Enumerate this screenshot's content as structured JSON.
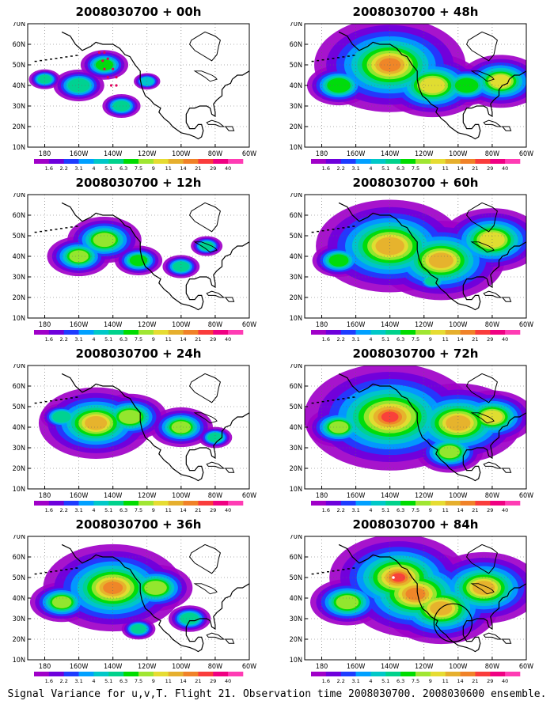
{
  "panels": [
    {
      "title": "2008030700 + 00h",
      "blobs": [
        [
          145,
          50,
          0.45,
          10
        ],
        [
          160,
          40,
          0.4,
          12
        ],
        [
          135,
          30,
          0.3,
          12
        ],
        [
          180,
          43,
          0.3,
          10
        ],
        [
          120,
          42,
          0.25,
          10
        ]
      ],
      "markers": "track"
    },
    {
      "title": "2008030700 + 48h",
      "blobs": [
        [
          140,
          50,
          1.1,
          13
        ],
        [
          115,
          40,
          0.8,
          12
        ],
        [
          75,
          42,
          0.8,
          10
        ],
        [
          170,
          40,
          0.5,
          12
        ],
        [
          95,
          40,
          0.5,
          12
        ]
      ]
    },
    {
      "title": "2008030700 + 12h",
      "blobs": [
        [
          145,
          48,
          0.7,
          10
        ],
        [
          160,
          40,
          0.6,
          10
        ],
        [
          125,
          38,
          0.45,
          10
        ],
        [
          100,
          35,
          0.35,
          10
        ],
        [
          85,
          45,
          0.3,
          10
        ]
      ]
    },
    {
      "title": "2008030700 + 60h",
      "blobs": [
        [
          140,
          45,
          1.0,
          14
        ],
        [
          110,
          38,
          1.0,
          12
        ],
        [
          80,
          48,
          0.8,
          12
        ],
        [
          170,
          38,
          0.5,
          10
        ],
        [
          115,
          28,
          0.4,
          8
        ]
      ]
    },
    {
      "title": "2008030700 + 24h",
      "blobs": [
        [
          150,
          42,
          0.9,
          12
        ],
        [
          130,
          45,
          0.7,
          10
        ],
        [
          100,
          40,
          0.6,
          10
        ],
        [
          80,
          35,
          0.4,
          8
        ],
        [
          170,
          45,
          0.4,
          10
        ]
      ]
    },
    {
      "title": "2008030700 + 72h",
      "blobs": [
        [
          140,
          45,
          1.35,
          12
        ],
        [
          100,
          42,
          1.0,
          12
        ],
        [
          80,
          45,
          0.8,
          10
        ],
        [
          170,
          40,
          0.6,
          10
        ],
        [
          105,
          28,
          0.7,
          9
        ]
      ]
    },
    {
      "title": "2008030700 + 36h",
      "blobs": [
        [
          140,
          45,
          1.1,
          12
        ],
        [
          115,
          45,
          0.7,
          10
        ],
        [
          170,
          38,
          0.6,
          10
        ],
        [
          95,
          30,
          0.4,
          10
        ],
        [
          125,
          25,
          0.4,
          8
        ]
      ]
    },
    {
      "title": "2008030700 + 84h",
      "blobs": [
        [
          135,
          50,
          1.45,
          9
        ],
        [
          125,
          42,
          1.1,
          12
        ],
        [
          110,
          35,
          0.9,
          12
        ],
        [
          85,
          45,
          0.9,
          12
        ],
        [
          165,
          38,
          0.7,
          10
        ]
      ],
      "markers": "circle"
    }
  ],
  "axes": {
    "lat_labels": [
      "70N",
      "60N",
      "50N",
      "40N",
      "30N",
      "20N",
      "10N"
    ],
    "lon_labels": [
      "180",
      "160W",
      "140W",
      "120W",
      "100W",
      "80W",
      "60W"
    ]
  },
  "colorbar": {
    "labels": [
      "1.6",
      "2.2",
      "3.1",
      "4",
      "5.1",
      "6.3",
      "7.5",
      "9",
      "11",
      "14",
      "21",
      "29",
      "40"
    ],
    "colors": [
      "#a000c8",
      "#6e00dc",
      "#1e3cff",
      "#00a0ff",
      "#00c8c8",
      "#00d28c",
      "#00dc00",
      "#a0e632",
      "#e6dc32",
      "#e6af2d",
      "#f08228",
      "#fa3c3c",
      "#f00082",
      "#ff3cb4"
    ]
  },
  "footer": "Signal Variance for u,v,T. Flight 21. Observation time 2008030700. 2008030600 ensemble."
}
